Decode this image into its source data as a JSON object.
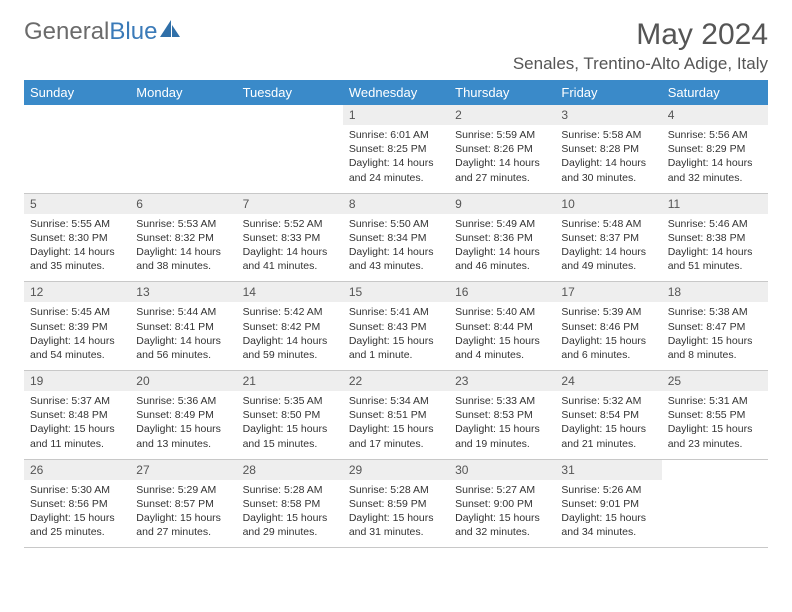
{
  "logo": {
    "text1": "General",
    "text2": "Blue"
  },
  "title": "May 2024",
  "location": "Senales, Trentino-Alto Adige, Italy",
  "colors": {
    "header_bg": "#3a8ac9",
    "header_text": "#ffffff",
    "daynum_bg": "#eeeeee",
    "text": "#333333",
    "title_text": "#555555",
    "logo_gray": "#6b6b6b",
    "logo_blue": "#3a7ab8",
    "border": "#c8c8c8",
    "page_bg": "#ffffff"
  },
  "typography": {
    "family": "Arial",
    "title_size_pt": 22,
    "location_size_pt": 13,
    "dayhead_size_pt": 10,
    "body_size_pt": 8
  },
  "day_headers": [
    "Sunday",
    "Monday",
    "Tuesday",
    "Wednesday",
    "Thursday",
    "Friday",
    "Saturday"
  ],
  "weeks": [
    [
      {
        "n": "",
        "sr": "",
        "ss": "",
        "dl": ""
      },
      {
        "n": "",
        "sr": "",
        "ss": "",
        "dl": ""
      },
      {
        "n": "",
        "sr": "",
        "ss": "",
        "dl": ""
      },
      {
        "n": "1",
        "sr": "Sunrise: 6:01 AM",
        "ss": "Sunset: 8:25 PM",
        "dl": "Daylight: 14 hours and 24 minutes."
      },
      {
        "n": "2",
        "sr": "Sunrise: 5:59 AM",
        "ss": "Sunset: 8:26 PM",
        "dl": "Daylight: 14 hours and 27 minutes."
      },
      {
        "n": "3",
        "sr": "Sunrise: 5:58 AM",
        "ss": "Sunset: 8:28 PM",
        "dl": "Daylight: 14 hours and 30 minutes."
      },
      {
        "n": "4",
        "sr": "Sunrise: 5:56 AM",
        "ss": "Sunset: 8:29 PM",
        "dl": "Daylight: 14 hours and 32 minutes."
      }
    ],
    [
      {
        "n": "5",
        "sr": "Sunrise: 5:55 AM",
        "ss": "Sunset: 8:30 PM",
        "dl": "Daylight: 14 hours and 35 minutes."
      },
      {
        "n": "6",
        "sr": "Sunrise: 5:53 AM",
        "ss": "Sunset: 8:32 PM",
        "dl": "Daylight: 14 hours and 38 minutes."
      },
      {
        "n": "7",
        "sr": "Sunrise: 5:52 AM",
        "ss": "Sunset: 8:33 PM",
        "dl": "Daylight: 14 hours and 41 minutes."
      },
      {
        "n": "8",
        "sr": "Sunrise: 5:50 AM",
        "ss": "Sunset: 8:34 PM",
        "dl": "Daylight: 14 hours and 43 minutes."
      },
      {
        "n": "9",
        "sr": "Sunrise: 5:49 AM",
        "ss": "Sunset: 8:36 PM",
        "dl": "Daylight: 14 hours and 46 minutes."
      },
      {
        "n": "10",
        "sr": "Sunrise: 5:48 AM",
        "ss": "Sunset: 8:37 PM",
        "dl": "Daylight: 14 hours and 49 minutes."
      },
      {
        "n": "11",
        "sr": "Sunrise: 5:46 AM",
        "ss": "Sunset: 8:38 PM",
        "dl": "Daylight: 14 hours and 51 minutes."
      }
    ],
    [
      {
        "n": "12",
        "sr": "Sunrise: 5:45 AM",
        "ss": "Sunset: 8:39 PM",
        "dl": "Daylight: 14 hours and 54 minutes."
      },
      {
        "n": "13",
        "sr": "Sunrise: 5:44 AM",
        "ss": "Sunset: 8:41 PM",
        "dl": "Daylight: 14 hours and 56 minutes."
      },
      {
        "n": "14",
        "sr": "Sunrise: 5:42 AM",
        "ss": "Sunset: 8:42 PM",
        "dl": "Daylight: 14 hours and 59 minutes."
      },
      {
        "n": "15",
        "sr": "Sunrise: 5:41 AM",
        "ss": "Sunset: 8:43 PM",
        "dl": "Daylight: 15 hours and 1 minute."
      },
      {
        "n": "16",
        "sr": "Sunrise: 5:40 AM",
        "ss": "Sunset: 8:44 PM",
        "dl": "Daylight: 15 hours and 4 minutes."
      },
      {
        "n": "17",
        "sr": "Sunrise: 5:39 AM",
        "ss": "Sunset: 8:46 PM",
        "dl": "Daylight: 15 hours and 6 minutes."
      },
      {
        "n": "18",
        "sr": "Sunrise: 5:38 AM",
        "ss": "Sunset: 8:47 PM",
        "dl": "Daylight: 15 hours and 8 minutes."
      }
    ],
    [
      {
        "n": "19",
        "sr": "Sunrise: 5:37 AM",
        "ss": "Sunset: 8:48 PM",
        "dl": "Daylight: 15 hours and 11 minutes."
      },
      {
        "n": "20",
        "sr": "Sunrise: 5:36 AM",
        "ss": "Sunset: 8:49 PM",
        "dl": "Daylight: 15 hours and 13 minutes."
      },
      {
        "n": "21",
        "sr": "Sunrise: 5:35 AM",
        "ss": "Sunset: 8:50 PM",
        "dl": "Daylight: 15 hours and 15 minutes."
      },
      {
        "n": "22",
        "sr": "Sunrise: 5:34 AM",
        "ss": "Sunset: 8:51 PM",
        "dl": "Daylight: 15 hours and 17 minutes."
      },
      {
        "n": "23",
        "sr": "Sunrise: 5:33 AM",
        "ss": "Sunset: 8:53 PM",
        "dl": "Daylight: 15 hours and 19 minutes."
      },
      {
        "n": "24",
        "sr": "Sunrise: 5:32 AM",
        "ss": "Sunset: 8:54 PM",
        "dl": "Daylight: 15 hours and 21 minutes."
      },
      {
        "n": "25",
        "sr": "Sunrise: 5:31 AM",
        "ss": "Sunset: 8:55 PM",
        "dl": "Daylight: 15 hours and 23 minutes."
      }
    ],
    [
      {
        "n": "26",
        "sr": "Sunrise: 5:30 AM",
        "ss": "Sunset: 8:56 PM",
        "dl": "Daylight: 15 hours and 25 minutes."
      },
      {
        "n": "27",
        "sr": "Sunrise: 5:29 AM",
        "ss": "Sunset: 8:57 PM",
        "dl": "Daylight: 15 hours and 27 minutes."
      },
      {
        "n": "28",
        "sr": "Sunrise: 5:28 AM",
        "ss": "Sunset: 8:58 PM",
        "dl": "Daylight: 15 hours and 29 minutes."
      },
      {
        "n": "29",
        "sr": "Sunrise: 5:28 AM",
        "ss": "Sunset: 8:59 PM",
        "dl": "Daylight: 15 hours and 31 minutes."
      },
      {
        "n": "30",
        "sr": "Sunrise: 5:27 AM",
        "ss": "Sunset: 9:00 PM",
        "dl": "Daylight: 15 hours and 32 minutes."
      },
      {
        "n": "31",
        "sr": "Sunrise: 5:26 AM",
        "ss": "Sunset: 9:01 PM",
        "dl": "Daylight: 15 hours and 34 minutes."
      },
      {
        "n": "",
        "sr": "",
        "ss": "",
        "dl": ""
      }
    ]
  ]
}
